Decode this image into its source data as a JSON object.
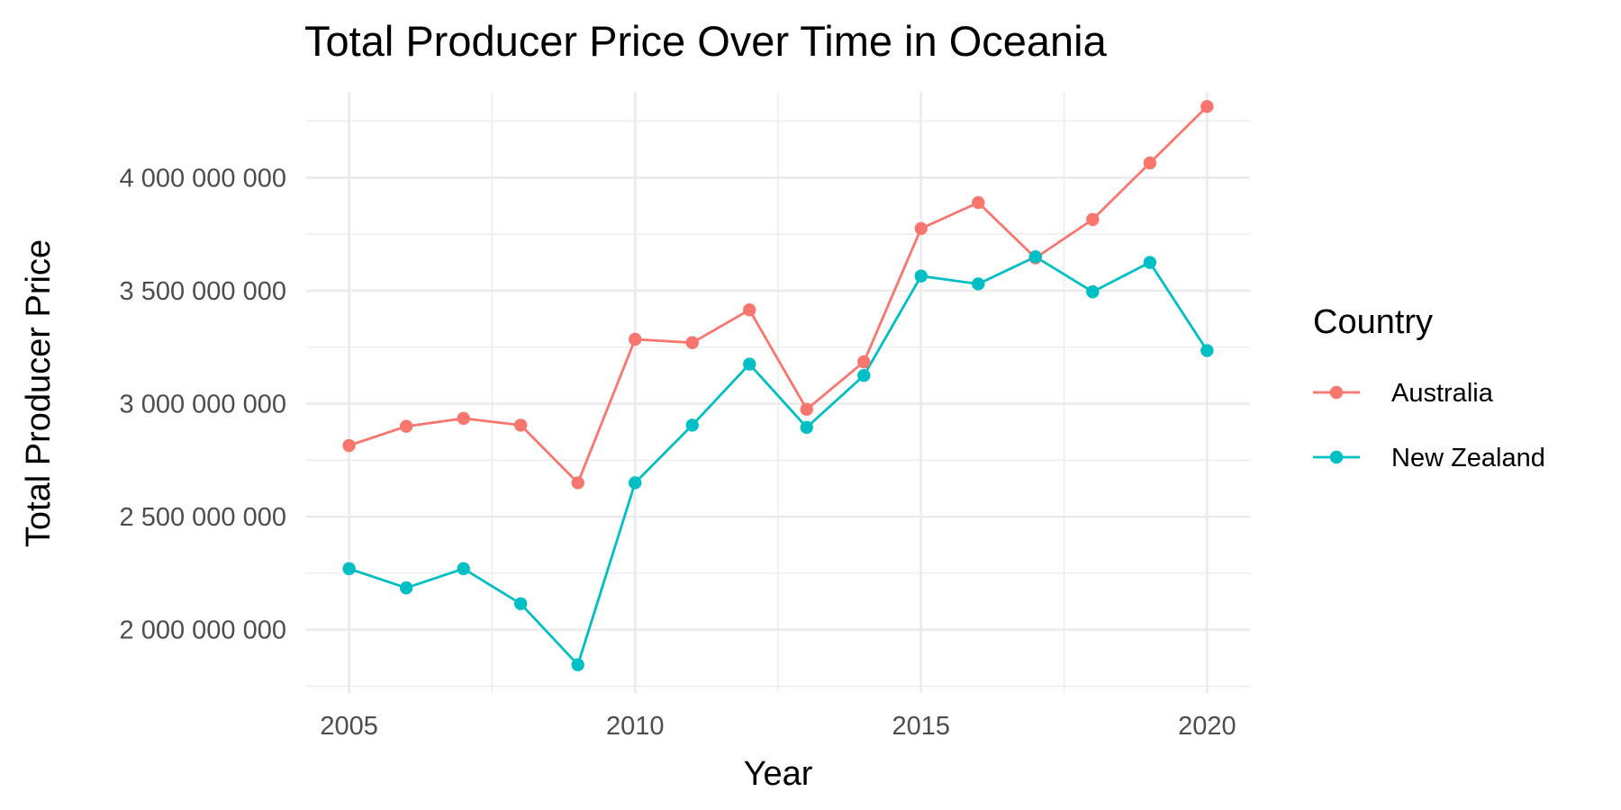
{
  "chart_data": {
    "type": "line",
    "title": "Total Producer Price Over Time in Oceania",
    "xlabel": "Year",
    "ylabel": "Total Producer Price",
    "x": [
      2005,
      2006,
      2007,
      2008,
      2009,
      2010,
      2011,
      2012,
      2013,
      2014,
      2015,
      2016,
      2017,
      2018,
      2019,
      2020
    ],
    "xlim": [
      2004.25,
      2020.75
    ],
    "ylim": [
      1720000000,
      4380000000
    ],
    "x_ticks": [
      2005,
      2010,
      2015,
      2020
    ],
    "x_tick_labels": [
      "2005",
      "2010",
      "2015",
      "2020"
    ],
    "y_ticks": [
      2000000000,
      2500000000,
      3000000000,
      3500000000,
      4000000000
    ],
    "y_tick_labels": [
      "2 000 000 000",
      "2 500 000 000",
      "3 000 000 000",
      "3 500 000 000",
      "4 000 000 000"
    ],
    "grid": true,
    "legend": {
      "title": "Country",
      "position": "right"
    },
    "series": [
      {
        "name": "Australia",
        "color": "#F8766D",
        "values": [
          2815000000,
          2900000000,
          2935000000,
          2905000000,
          2650000000,
          3285000000,
          3270000000,
          3415000000,
          2975000000,
          3185000000,
          3775000000,
          3890000000,
          3645000000,
          3815000000,
          4065000000,
          4315000000
        ]
      },
      {
        "name": "New Zealand",
        "color": "#00BFC4",
        "values": [
          2270000000,
          2185000000,
          2270000000,
          2115000000,
          1845000000,
          2650000000,
          2905000000,
          3175000000,
          2895000000,
          3125000000,
          3565000000,
          3530000000,
          3650000000,
          3495000000,
          3625000000,
          3235000000
        ]
      }
    ]
  }
}
